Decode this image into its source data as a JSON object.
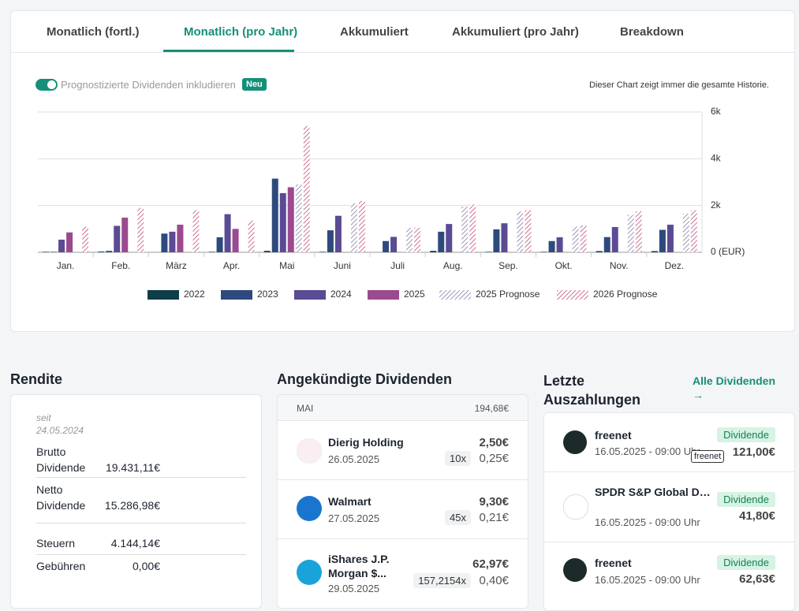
{
  "tabs": [
    "Monatlich (fortl.)",
    "Monatlich (pro Jahr)",
    "Akkumuliert",
    "Akkumuliert (pro Jahr)",
    "Breakdown"
  ],
  "toggle_label": "Prognostizierte Dividenden inkludieren",
  "badge": "Neu",
  "note": "Dieser Chart zeigt immer die gesamte Historie.",
  "chart_data": {
    "type": "bar",
    "categories": [
      "Jan.",
      "Feb.",
      "März",
      "Apr.",
      "Mai",
      "Juni",
      "Juli",
      "Aug.",
      "Sep.",
      "Okt.",
      "Nov.",
      "Dez."
    ],
    "series": [
      {
        "name": "2022",
        "color": "#0f3d4a",
        "values": [
          20,
          30,
          0,
          20,
          60,
          20,
          0,
          60,
          20,
          20,
          50,
          50
        ]
      },
      {
        "name": "2023",
        "color": "#2e4a7d",
        "values": [
          20,
          60,
          800,
          640,
          3150,
          940,
          480,
          880,
          980,
          480,
          650,
          960
        ]
      },
      {
        "name": "2024",
        "color": "#5b4a94",
        "values": [
          540,
          1130,
          880,
          1630,
          2530,
          1560,
          660,
          1210,
          1240,
          640,
          1080,
          1180
        ]
      },
      {
        "name": "2025",
        "color": "#9b4a8f",
        "values": [
          850,
          1480,
          1180,
          1000,
          2780,
          0,
          0,
          0,
          0,
          0,
          0,
          0
        ]
      },
      {
        "name": "2025 Prognose",
        "color": "#8a7aa8",
        "hatch": true,
        "values": [
          0,
          0,
          0,
          0,
          2900,
          2100,
          1050,
          1950,
          1750,
          1100,
          1600,
          1650
        ]
      },
      {
        "name": "2026 Prognose",
        "color": "#c04e7a",
        "hatch": true,
        "values": [
          1100,
          1900,
          1800,
          1350,
          5400,
          2200,
          1050,
          2050,
          1800,
          1150,
          1750,
          1800
        ]
      }
    ],
    "ylim": [
      0,
      6000
    ],
    "yticks": [
      {
        "value": 0,
        "label": "0 (EUR)"
      },
      {
        "value": 2000,
        "label": "2k"
      },
      {
        "value": 4000,
        "label": "4k"
      },
      {
        "value": 6000,
        "label": "6k"
      }
    ],
    "grid": true
  },
  "rendite": {
    "title": "Rendite",
    "since": "seit",
    "since_date": "24.05.2024",
    "rows": [
      {
        "label": "Brutto Dividende",
        "value": "19.431,11€"
      },
      {
        "label": "Netto Dividende",
        "value": "15.286,98€"
      },
      {
        "label": "Steuern",
        "value": "4.144,14€"
      },
      {
        "label": "Gebühren",
        "value": "0,00€"
      }
    ]
  },
  "announced": {
    "title": "Angekündigte Dividenden",
    "month": "MAI",
    "total": "194,68€",
    "items": [
      {
        "name": "Dierig Holding",
        "date": "26.05.2025",
        "amount": "2,50€",
        "shares": "10x",
        "per_share": "0,25€"
      },
      {
        "name": "Walmart",
        "date": "27.05.2025",
        "amount": "9,30€",
        "shares": "45x",
        "per_share": "0,21€"
      },
      {
        "name": "iShares J.P. Morgan $...",
        "date": "29.05.2025",
        "amount": "62,97€",
        "shares": "157,2154x",
        "per_share": "0,40€"
      }
    ]
  },
  "payouts": {
    "title": "Letzte Auszahlungen",
    "link": "Alle Dividenden →",
    "tooltip": "freenet",
    "items": [
      {
        "name": "freenet",
        "date": "16.05.2025 - 09:00 Uhr",
        "badge": "Dividende",
        "amount": "121,00€"
      },
      {
        "name": "SPDR S&P Global Dividend Aristocrat...",
        "date": "16.05.2025 - 09:00 Uhr",
        "badge": "Dividende",
        "amount": "41,80€"
      },
      {
        "name": "freenet",
        "date": "16.05.2025 - 09:00 Uhr",
        "badge": "Dividende",
        "amount": "62,63€"
      }
    ]
  }
}
